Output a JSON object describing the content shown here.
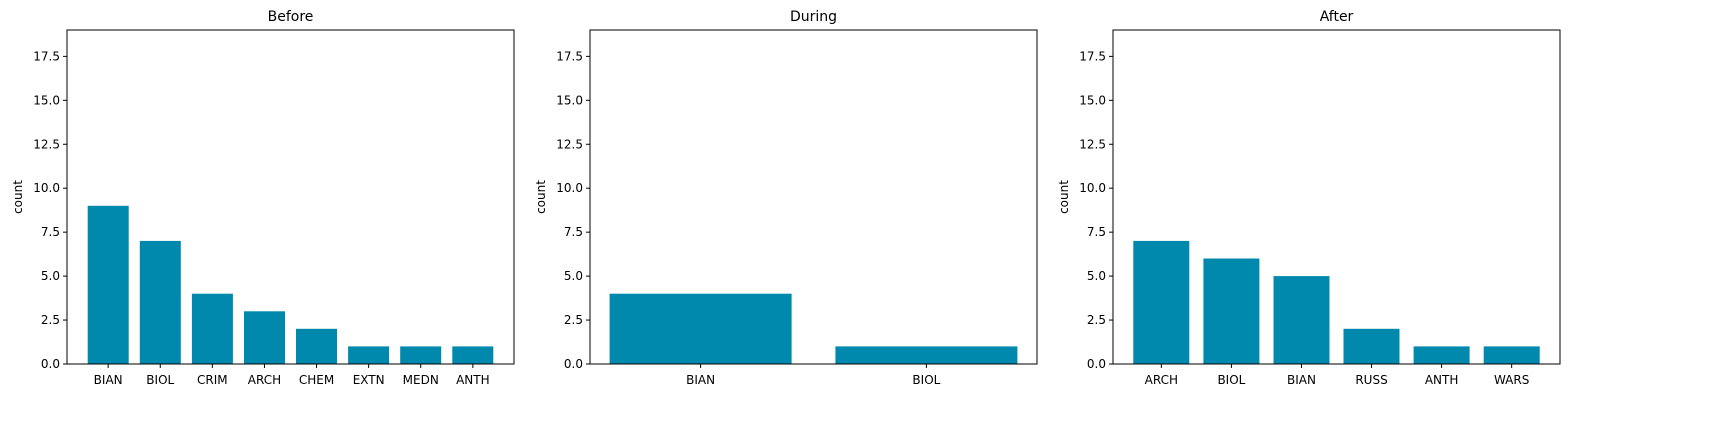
{
  "colors": {
    "bar": "#0088ad",
    "axis": "#000000"
  },
  "chart_data": [
    {
      "type": "bar",
      "title": "Before",
      "xlabel": "",
      "ylabel": "count",
      "ylim": [
        0,
        19
      ],
      "yticks": [
        "0.0",
        "2.5",
        "5.0",
        "7.5",
        "10.0",
        "12.5",
        "15.0",
        "17.5"
      ],
      "categories": [
        "BIAN",
        "BIOL",
        "CRIM",
        "ARCH",
        "CHEM",
        "EXTN",
        "MEDN",
        "ANTH"
      ],
      "values": [
        9,
        7,
        4,
        3,
        2,
        1,
        1,
        1
      ],
      "grid": false
    },
    {
      "type": "bar",
      "title": "During",
      "xlabel": "",
      "ylabel": "count",
      "ylim": [
        0,
        19
      ],
      "yticks": [
        "0.0",
        "2.5",
        "5.0",
        "7.5",
        "10.0",
        "12.5",
        "15.0",
        "17.5"
      ],
      "categories": [
        "BIAN",
        "BIOL"
      ],
      "values": [
        4,
        1
      ],
      "grid": false
    },
    {
      "type": "bar",
      "title": "After",
      "xlabel": "",
      "ylabel": "count",
      "ylim": [
        0,
        19
      ],
      "yticks": [
        "0.0",
        "2.5",
        "5.0",
        "7.5",
        "10.0",
        "12.5",
        "15.0",
        "17.5"
      ],
      "categories": [
        "ARCH",
        "BIOL",
        "BIAN",
        "RUSS",
        "ANTH",
        "WARS"
      ],
      "values": [
        7,
        6,
        5,
        2,
        1,
        1
      ],
      "grid": false
    }
  ]
}
